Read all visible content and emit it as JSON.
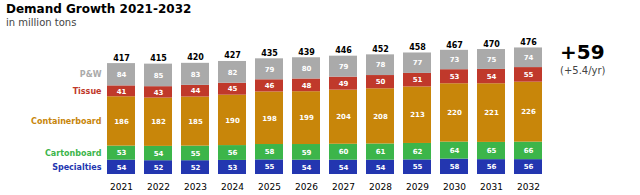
{
  "chart_data": {
    "type": "bar",
    "title": "Demand Growth 2021-2032",
    "subtitle": "in million tons",
    "categories": [
      "2021",
      "2022",
      "2023",
      "2024",
      "2025",
      "2026",
      "2027",
      "2028",
      "2029",
      "2030",
      "2031",
      "2032"
    ],
    "series": [
      {
        "name": "Specialties",
        "color": "#2336b0",
        "values": [
          54,
          52,
          52,
          53,
          55,
          54,
          54,
          54,
          55,
          58,
          56,
          56
        ]
      },
      {
        "name": "Cartonboard",
        "color": "#3cb54a",
        "values": [
          53,
          54,
          55,
          56,
          58,
          59,
          60,
          61,
          62,
          64,
          65,
          66
        ]
      },
      {
        "name": "Containerboard",
        "color": "#c8860a",
        "values": [
          186,
          182,
          185,
          190,
          198,
          199,
          204,
          208,
          213,
          220,
          221,
          226
        ]
      },
      {
        "name": "Tissue",
        "color": "#c0392b",
        "values": [
          41,
          43,
          44,
          45,
          46,
          48,
          49,
          50,
          51,
          53,
          54,
          55
        ]
      },
      {
        "name": "P&W",
        "color": "#aaaaaa",
        "values": [
          84,
          85,
          83,
          82,
          79,
          80,
          79,
          78,
          77,
          73,
          75,
          74
        ]
      }
    ],
    "totals": [
      417,
      415,
      420,
      427,
      435,
      439,
      446,
      452,
      458,
      467,
      470,
      476
    ],
    "annotations": [
      "+59",
      "(+5.4/yr)"
    ],
    "stacked": true,
    "data_labels": true,
    "ylim": [
      0,
      490
    ],
    "tick_labels": "x"
  }
}
